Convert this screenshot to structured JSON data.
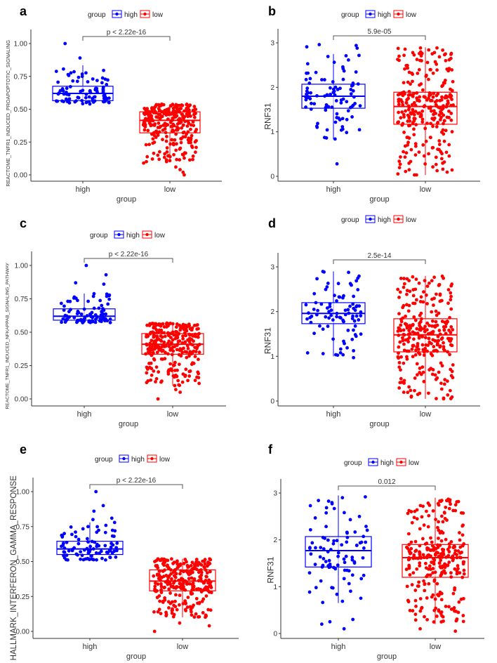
{
  "colors": {
    "high": "#0000ff",
    "low": "#ff0000",
    "axis": "#333333",
    "bracket": "#555555"
  },
  "legend": {
    "title": "group",
    "items": [
      "high",
      "low"
    ]
  },
  "chart_data": [
    {
      "panel": "a",
      "type": "box+jitter",
      "xlabel": "group",
      "ylabel": "REACTOME_TNFR1_INDUCED_PROAPOPTOTIC_SIGNALING",
      "categories": [
        "high",
        "low"
      ],
      "yticks": [
        "0.00",
        "0.25",
        "0.50",
        "0.75",
        "1.00"
      ],
      "ytick_values": [
        0,
        0.25,
        0.5,
        0.75,
        1.0
      ],
      "ylim": [
        -0.05,
        1.1
      ],
      "pvalue": "p < 2.22e-16",
      "boxes": [
        {
          "group": "high",
          "whisker_low": 0.54,
          "q1": 0.565,
          "median": 0.62,
          "q3": 0.675,
          "whisker_high": 0.835,
          "outliers": [
            0.89,
            1.0
          ]
        },
        {
          "group": "low",
          "whisker_low": 0.1,
          "q1": 0.32,
          "median": 0.415,
          "q3": 0.48,
          "whisker_high": 0.54,
          "outliers": [
            0.0,
            0.02,
            0.04,
            0.06,
            0.09
          ]
        }
      ]
    },
    {
      "panel": "b",
      "type": "box+jitter",
      "xlabel": "group",
      "ylabel": "RNF31",
      "categories": [
        "high",
        "low"
      ],
      "yticks": [
        "0",
        "1",
        "2",
        "3"
      ],
      "ytick_values": [
        0,
        1,
        2,
        3
      ],
      "ylim": [
        -0.1,
        3.25
      ],
      "pvalue": "5.9e-05",
      "boxes": [
        {
          "group": "high",
          "whisker_low": 0.83,
          "q1": 1.53,
          "median": 1.8,
          "q3": 2.07,
          "whisker_high": 2.75,
          "outliers": [
            0.28,
            2.88,
            2.91,
            2.94,
            2.96
          ]
        },
        {
          "group": "low",
          "whisker_low": 0.03,
          "q1": 1.17,
          "median": 1.57,
          "q3": 1.89,
          "whisker_high": 2.9,
          "outliers": []
        }
      ]
    },
    {
      "panel": "c",
      "type": "box+jitter",
      "xlabel": "group",
      "ylabel": "REACTOME_TNFR1_INDUCED_NFKAPPAB_SIGNALING_PATHWAY",
      "categories": [
        "high",
        "low"
      ],
      "yticks": [
        "0.00",
        "0.25",
        "0.50",
        "0.75",
        "1.00"
      ],
      "ytick_values": [
        0,
        0.25,
        0.5,
        0.75,
        1.0
      ],
      "ylim": [
        -0.05,
        1.1
      ],
      "pvalue": "p < 2.22e-16",
      "boxes": [
        {
          "group": "high",
          "whisker_low": 0.57,
          "q1": 0.59,
          "median": 0.62,
          "q3": 0.675,
          "whisker_high": 0.79,
          "outliers": [
            0.86,
            0.87,
            0.93,
            1.0
          ]
        },
        {
          "group": "low",
          "whisker_low": 0.1,
          "q1": 0.335,
          "median": 0.41,
          "q3": 0.49,
          "whisker_high": 0.57,
          "outliers": [
            0.0,
            0.05,
            0.07,
            0.1
          ]
        }
      ]
    },
    {
      "panel": "d",
      "type": "box+jitter",
      "xlabel": "group",
      "ylabel": "RNF31",
      "categories": [
        "high",
        "low"
      ],
      "yticks": [
        "0",
        "1",
        "2",
        "3"
      ],
      "ytick_values": [
        0,
        1,
        2,
        3
      ],
      "ylim": [
        -0.1,
        3.25
      ],
      "pvalue": "2.5e-14",
      "boxes": [
        {
          "group": "high",
          "whisker_low": 1.0,
          "q1": 1.73,
          "median": 1.96,
          "q3": 2.2,
          "whisker_high": 2.9,
          "outliers": [
            0.97
          ]
        },
        {
          "group": "low",
          "whisker_low": 0.05,
          "q1": 1.1,
          "median": 1.48,
          "q3": 1.84,
          "whisker_high": 2.8,
          "outliers": []
        }
      ]
    },
    {
      "panel": "e",
      "type": "box+jitter",
      "xlabel": "group",
      "ylabel": "HALLMARK_INTERFERON_GAMMA_RESPONSE",
      "categories": [
        "high",
        "low"
      ],
      "yticks": [
        "0.00",
        "0.25",
        "0.50",
        "0.75",
        "1.00"
      ],
      "ytick_values": [
        0,
        0.25,
        0.5,
        0.75,
        1.0
      ],
      "ylim": [
        -0.05,
        1.1
      ],
      "pvalue": "p < 2.22e-16",
      "boxes": [
        {
          "group": "high",
          "whisker_low": 0.51,
          "q1": 0.55,
          "median": 0.59,
          "q3": 0.645,
          "whisker_high": 0.78,
          "outliers": [
            0.8,
            0.81,
            0.86,
            0.9,
            1.0
          ]
        },
        {
          "group": "low",
          "whisker_low": 0.1,
          "q1": 0.29,
          "median": 0.36,
          "q3": 0.44,
          "whisker_high": 0.52,
          "outliers": [
            0.0,
            0.04,
            0.06,
            0.13
          ]
        }
      ]
    },
    {
      "panel": "f",
      "type": "box+jitter",
      "xlabel": "group",
      "ylabel": "RNF31",
      "categories": [
        "high",
        "low"
      ],
      "yticks": [
        "0",
        "1",
        "2",
        "3"
      ],
      "ytick_values": [
        0,
        1,
        2,
        3
      ],
      "ylim": [
        -0.1,
        3.25
      ],
      "pvalue": "0.012",
      "boxes": [
        {
          "group": "high",
          "whisker_low": 0.65,
          "q1": 1.42,
          "median": 1.77,
          "q3": 2.07,
          "whisker_high": 2.95,
          "outliers": [
            0.1,
            0.2,
            0.25,
            0.3
          ]
        },
        {
          "group": "low",
          "whisker_low": 0.2,
          "q1": 1.2,
          "median": 1.62,
          "q3": 1.9,
          "whisker_high": 2.9,
          "outliers": [
            0.05,
            0.1
          ]
        }
      ]
    }
  ]
}
